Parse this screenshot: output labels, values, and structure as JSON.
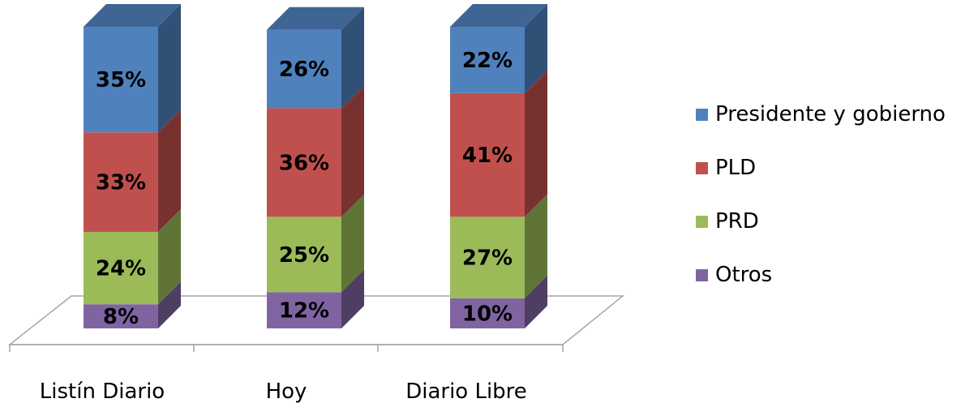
{
  "chart_data": {
    "type": "bar",
    "stacked": true,
    "three_d": true,
    "categories": [
      "Listín Diario",
      "Hoy",
      "Diario Libre"
    ],
    "series": [
      {
        "name": "Otros",
        "values": [
          8,
          12,
          10
        ],
        "color": "#8064A2",
        "labels": [
          "8%",
          "12%",
          "10%"
        ]
      },
      {
        "name": "PRD",
        "values": [
          24,
          25,
          27
        ],
        "color": "#9BBB59",
        "labels": [
          "24%",
          "25%",
          "27%"
        ]
      },
      {
        "name": "PLD",
        "values": [
          33,
          36,
          41
        ],
        "color": "#C0504D",
        "labels": [
          "33%",
          "36%",
          "41%"
        ]
      },
      {
        "name": "Presidente y gobierno",
        "values": [
          35,
          26,
          22
        ],
        "color": "#4F81BD",
        "labels": [
          "35%",
          "26%",
          "22%"
        ]
      }
    ],
    "legend_position": "right",
    "ylim": [
      0,
      100
    ],
    "grid": false
  },
  "legend": {
    "items": [
      {
        "label": "Presidente y gobierno",
        "color": "#4F81BD"
      },
      {
        "label": "PLD",
        "color": "#C0504D"
      },
      {
        "label": "PRD",
        "color": "#9BBB59"
      },
      {
        "label": "Otros",
        "color": "#8064A2"
      }
    ]
  }
}
